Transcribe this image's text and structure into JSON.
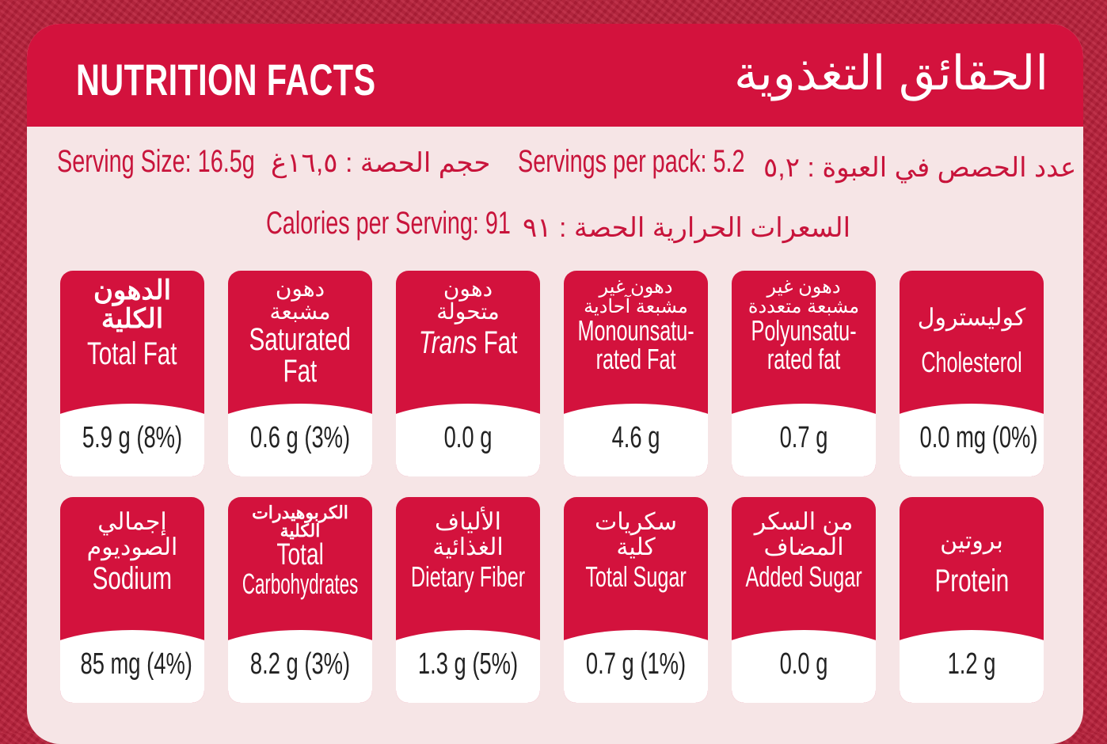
{
  "header": {
    "title_en": "NUTRITION FACTS",
    "title_ar": "الحقائق التغذوية"
  },
  "serving": {
    "size_en": "Serving Size: 16.5g",
    "size_ar": "حجم الحصة : ١٦,٥غ",
    "per_pack_en": "Servings per pack: 5.2",
    "per_pack_ar": "عدد الحصص في العبوة : ٥,٢",
    "calories_en": "Calories per Serving: 91",
    "calories_ar": "السعرات الحرارية الحصة : ٩١"
  },
  "nutrients": [
    {
      "ar1": "الدهون",
      "ar2": "الكلية",
      "en1": "Total Fat",
      "en2": "",
      "value": "5.9 g (8%)"
    },
    {
      "ar1": "دهون",
      "ar2": "مشبعة",
      "en1": "Saturated",
      "en2": "Fat",
      "value": "0.6 g (3%)"
    },
    {
      "ar1": "دهون",
      "ar2": "متحولة",
      "en1_italic": "Trans",
      "en1": "Fat",
      "value": "0.0 g"
    },
    {
      "ar1": "دهون غير",
      "ar2": "مشبعة آحادية",
      "en1": "Monounsatu-",
      "en2": "rated Fat",
      "value": "4.6 g"
    },
    {
      "ar1": "دهون غير",
      "ar2": "مشبعة متعددة",
      "en1": "Polyunsatu-",
      "en2": "rated fat",
      "value": "0.7 g"
    },
    {
      "ar1": "كوليسترول",
      "en1": "Cholesterol",
      "value": "0.0 mg (0%)"
    },
    {
      "ar1": "إجمالي",
      "ar2": "الصوديوم",
      "en1": "Sodium",
      "value": "85 mg (4%)"
    },
    {
      "ar1": "الكربوهيدرات",
      "ar2": "الكلية",
      "en1": "Total",
      "en2": "Carbohydrates",
      "value": "8.2 g (3%)"
    },
    {
      "ar1": "الألياف",
      "ar2": "الغذائية",
      "en1": "Dietary Fiber",
      "value": "1.3 g (5%)"
    },
    {
      "ar1": "سكريات",
      "ar2": "كلية",
      "en1": "Total Sugar",
      "value": "0.7 g (1%)"
    },
    {
      "ar1": "من السكر",
      "ar2": "المضاف",
      "en1": "Added Sugar",
      "value": "0.0 g"
    },
    {
      "ar1": "بروتين",
      "en1": "Protein",
      "value": "1.2 g"
    }
  ]
}
